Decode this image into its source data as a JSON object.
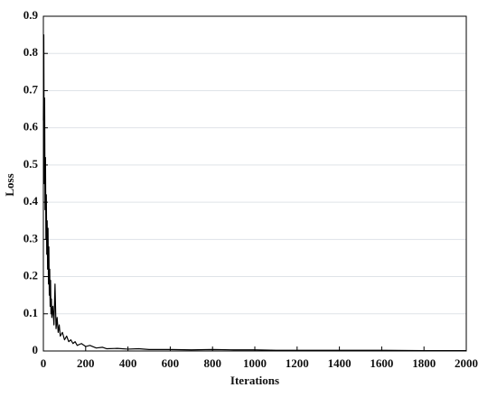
{
  "chart_data": {
    "type": "line",
    "x_label": "Iterations",
    "y_label": "Loss",
    "x": [
      0,
      2,
      4,
      6,
      8,
      10,
      12,
      14,
      16,
      18,
      20,
      22,
      24,
      26,
      28,
      30,
      32,
      34,
      36,
      38,
      40,
      45,
      50,
      55,
      60,
      65,
      70,
      75,
      80,
      90,
      100,
      110,
      120,
      130,
      140,
      150,
      160,
      180,
      200,
      220,
      250,
      280,
      300,
      350,
      400,
      450,
      500,
      600,
      700,
      800,
      900,
      1000,
      1100,
      1200,
      1400,
      1600,
      1800,
      2000
    ],
    "values": [
      0.62,
      0.85,
      0.45,
      0.68,
      0.38,
      0.52,
      0.3,
      0.42,
      0.26,
      0.35,
      0.22,
      0.33,
      0.18,
      0.28,
      0.15,
      0.22,
      0.12,
      0.19,
      0.1,
      0.14,
      0.09,
      0.12,
      0.07,
      0.18,
      0.06,
      0.09,
      0.05,
      0.07,
      0.04,
      0.05,
      0.03,
      0.04,
      0.025,
      0.03,
      0.02,
      0.025,
      0.015,
      0.02,
      0.012,
      0.015,
      0.008,
      0.01,
      0.006,
      0.007,
      0.005,
      0.006,
      0.004,
      0.004,
      0.003,
      0.004,
      0.003,
      0.003,
      0.002,
      0.002,
      0.002,
      0.002,
      0.001,
      0.001
    ],
    "color": "#000000",
    "xlim": [
      0,
      2000
    ],
    "xticks": [
      0,
      200,
      400,
      600,
      800,
      1000,
      1200,
      1400,
      1600,
      1800,
      2000
    ],
    "ylim": [
      0,
      0.9
    ],
    "yticks": [
      0,
      0.1,
      0.2,
      0.3,
      0.4,
      0.5,
      0.6,
      0.7,
      0.8,
      0.9
    ],
    "grid": true
  }
}
